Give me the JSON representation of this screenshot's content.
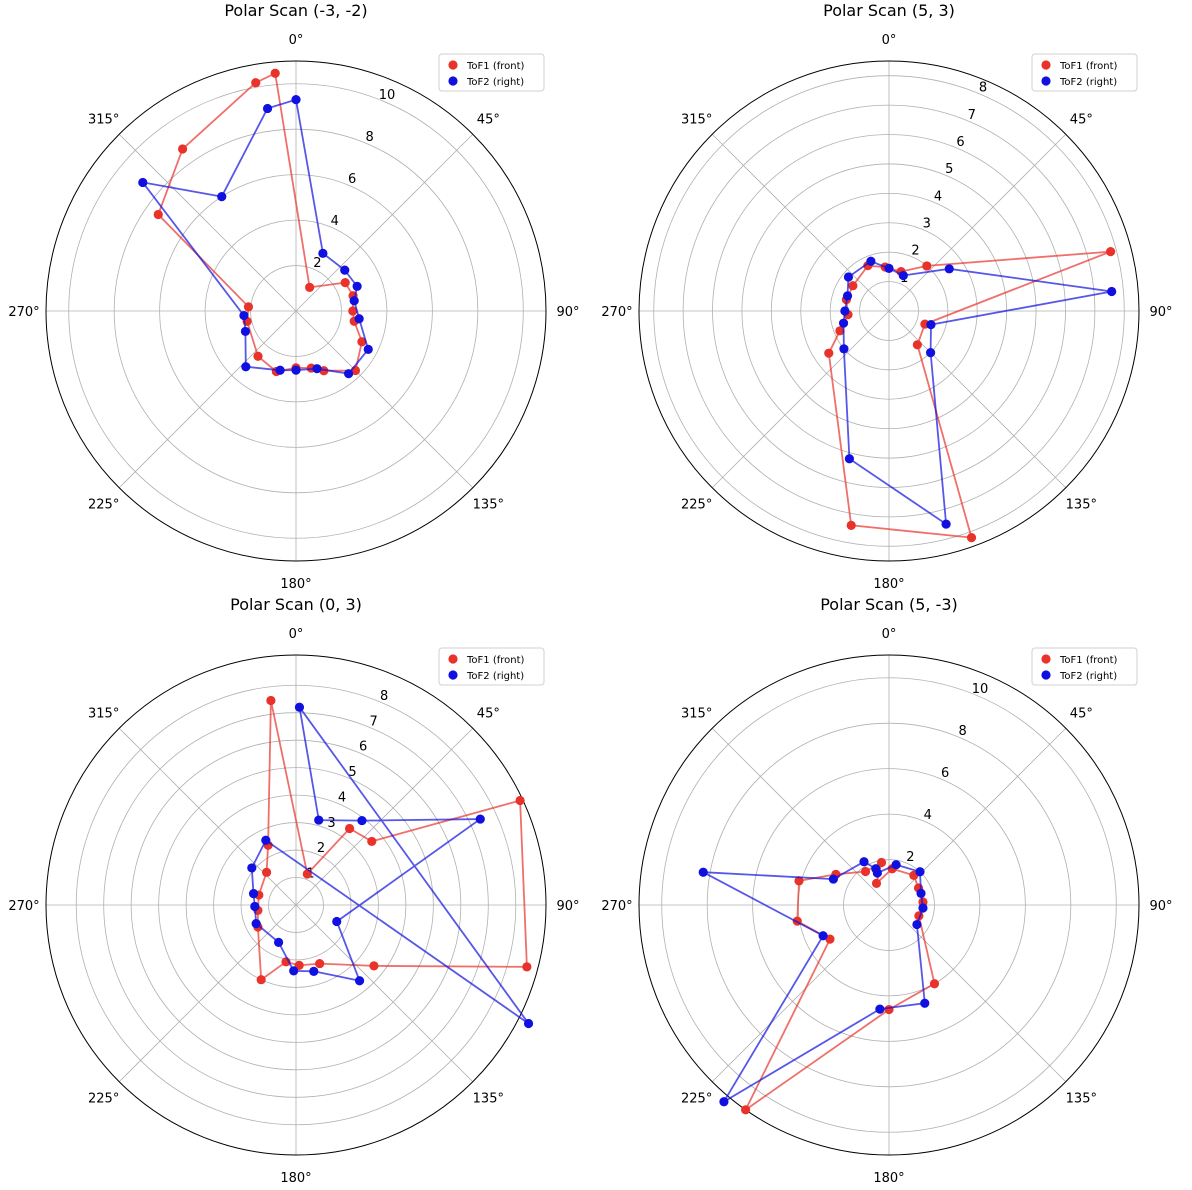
{
  "chart_data": [
    {
      "type": "scatter",
      "projection": "polar",
      "title": "Polar Scan (-3, -2)",
      "theta_direction": "clockwise",
      "theta_zero": "top",
      "r_ticks": [
        2,
        4,
        6,
        8,
        10
      ],
      "r_max": 11,
      "angle_tick_labels": [
        "0°",
        "45°",
        "90°",
        "135°",
        "180°",
        "225°",
        "270°",
        "315°"
      ],
      "grid": true,
      "legend_position": "top-right",
      "series": [
        {
          "name": "ToF1 (front)",
          "color": "#e8322a",
          "points": [
            [
              -5,
              10.5
            ],
            [
              30,
              1.2
            ],
            [
              60,
              2.5
            ],
            [
              75,
              2.6
            ],
            [
              90,
              2.5
            ],
            [
              100,
              2.6
            ],
            [
              115,
              3.2
            ],
            [
              135,
              3.7
            ],
            [
              155,
              2.9
            ],
            [
              165,
              2.6
            ],
            [
              180,
              2.5
            ],
            [
              198,
              2.8
            ],
            [
              220,
              2.6
            ],
            [
              258,
              2.2
            ],
            [
              275,
              2.1
            ],
            [
              305,
              7.4
            ],
            [
              325,
              8.7
            ],
            [
              350,
              10.2
            ]
          ]
        },
        {
          "name": "ToF2 (right)",
          "color": "#1010e0",
          "points": [
            [
              0,
              9.3
            ],
            [
              25,
              2.8
            ],
            [
              50,
              2.8
            ],
            [
              68,
              2.9
            ],
            [
              80,
              2.6
            ],
            [
              97,
              2.8
            ],
            [
              118,
              3.6
            ],
            [
              140,
              3.6
            ],
            [
              160,
              2.7
            ],
            [
              180,
              2.6
            ],
            [
              195,
              2.7
            ],
            [
              222,
              3.3
            ],
            [
              248,
              2.4
            ],
            [
              265,
              2.3
            ],
            [
              310,
              8.8
            ],
            [
              327,
              6.0
            ],
            [
              352,
              9.0
            ]
          ]
        }
      ]
    },
    {
      "type": "scatter",
      "projection": "polar",
      "title": "Polar Scan (5, 3)",
      "theta_direction": "clockwise",
      "theta_zero": "top",
      "r_ticks": [
        1,
        2,
        3,
        4,
        5,
        6,
        7,
        8
      ],
      "r_max": 8.5,
      "angle_tick_labels": [
        "0°",
        "45°",
        "90°",
        "135°",
        "180°",
        "225°",
        "270°",
        "315°"
      ],
      "grid": true,
      "legend_position": "top-right",
      "series": [
        {
          "name": "ToF1 (front)",
          "color": "#e8322a",
          "points": [
            [
              -5,
              1.5
            ],
            [
              17,
              1.4
            ],
            [
              40,
              2.0
            ],
            [
              75,
              7.8
            ],
            [
              110,
              1.3
            ],
            [
              140,
              1.5
            ],
            [
              160,
              8.2
            ],
            [
              190,
              7.4
            ],
            [
              235,
              2.5
            ],
            [
              248,
              1.8
            ],
            [
              265,
              1.4
            ],
            [
              285,
              1.5
            ],
            [
              305,
              1.5
            ],
            [
              335,
              1.7
            ]
          ]
        },
        {
          "name": "ToF2 (right)",
          "color": "#1010e0",
          "points": [
            [
              0,
              1.45
            ],
            [
              22,
              1.3
            ],
            [
              55,
              2.5
            ],
            [
              85,
              7.6
            ],
            [
              108,
              1.5
            ],
            [
              135,
              2.0
            ],
            [
              165,
              7.5
            ],
            [
              195,
              5.2
            ],
            [
              230,
              2.0
            ],
            [
              255,
              1.6
            ],
            [
              270,
              1.5
            ],
            [
              290,
              1.5
            ],
            [
              310,
              1.8
            ],
            [
              340,
              1.8
            ]
          ]
        }
      ]
    },
    {
      "type": "scatter",
      "projection": "polar",
      "title": "Polar Scan (0, 3)",
      "theta_direction": "clockwise",
      "theta_zero": "top",
      "r_ticks": [
        1,
        2,
        3,
        4,
        5,
        6,
        7,
        8
      ],
      "r_max": 9.1,
      "angle_tick_labels": [
        "0°",
        "45°",
        "90°",
        "135°",
        "180°",
        "225°",
        "270°",
        "315°"
      ],
      "grid": true,
      "legend_position": "top-right",
      "series": [
        {
          "name": "ToF1 (front)",
          "color": "#e8322a",
          "points": [
            [
              -7,
              7.5
            ],
            [
              20,
              1.2
            ],
            [
              35,
              3.4
            ],
            [
              50,
              3.6
            ],
            [
              65,
              9.0
            ],
            [
              105,
              8.7
            ],
            [
              128,
              3.6
            ],
            [
              158,
              2.3
            ],
            [
              177,
              2.2
            ],
            [
              190,
              2.1
            ],
            [
              205,
              3.0
            ],
            [
              240,
              1.6
            ],
            [
              262,
              1.4
            ],
            [
              285,
              1.4
            ],
            [
              318,
              1.6
            ],
            [
              335,
              2.4
            ]
          ]
        },
        {
          "name": "ToF2 (right)",
          "color": "#1010e0",
          "points": [
            [
              1,
              7.2
            ],
            [
              15,
              3.2
            ],
            [
              38,
              3.9
            ],
            [
              65,
              7.4
            ],
            [
              112,
              1.6
            ],
            [
              140,
              3.6
            ],
            [
              165,
              2.5
            ],
            [
              182,
              2.4
            ],
            [
              205,
              1.5
            ],
            [
              245,
              1.6
            ],
            [
              268,
              1.5
            ],
            [
              285,
              1.6
            ],
            [
              310,
              2.1
            ],
            [
              335,
              2.6
            ],
            [
              117,
              9.5
            ]
          ]
        }
      ]
    },
    {
      "type": "scatter",
      "projection": "polar",
      "title": "Polar Scan (5, -3)",
      "theta_direction": "clockwise",
      "theta_zero": "top",
      "r_ticks": [
        2,
        4,
        6,
        8,
        10
      ],
      "r_max": 11,
      "angle_tick_labels": [
        "0°",
        "45°",
        "90°",
        "135°",
        "180°",
        "225°",
        "270°",
        "315°"
      ],
      "grid": true,
      "legend_position": "top-right",
      "series": [
        {
          "name": "ToF1 (front)",
          "color": "#e8322a",
          "points": [
            [
              -30,
              1.1
            ],
            [
              5,
              1.6
            ],
            [
              40,
              1.7
            ],
            [
              60,
              1.5
            ],
            [
              85,
              1.5
            ],
            [
              110,
              1.4
            ],
            [
              150,
              4.0
            ],
            [
              180,
              4.6
            ],
            [
              215,
              11.0
            ],
            [
              240,
              3.0
            ],
            [
              260,
              4.1
            ],
            [
              285,
              4.1
            ],
            [
              300,
              2.7
            ],
            [
              325,
              1.8
            ],
            [
              350,
              1.9
            ]
          ]
        },
        {
          "name": "ToF2 (right)",
          "color": "#1010e0",
          "points": [
            [
              -20,
              1.5
            ],
            [
              10,
              1.8
            ],
            [
              43,
              2.0
            ],
            [
              70,
              1.5
            ],
            [
              95,
              1.5
            ],
            [
              125,
              1.5
            ],
            [
              160,
              4.6
            ],
            [
              185,
              4.6
            ],
            [
              220,
              11.3
            ],
            [
              245,
              3.2
            ],
            [
              280,
              8.3
            ],
            [
              295,
              2.7
            ],
            [
              330,
              2.2
            ],
            [
              340,
              1.7
            ]
          ]
        }
      ]
    }
  ]
}
